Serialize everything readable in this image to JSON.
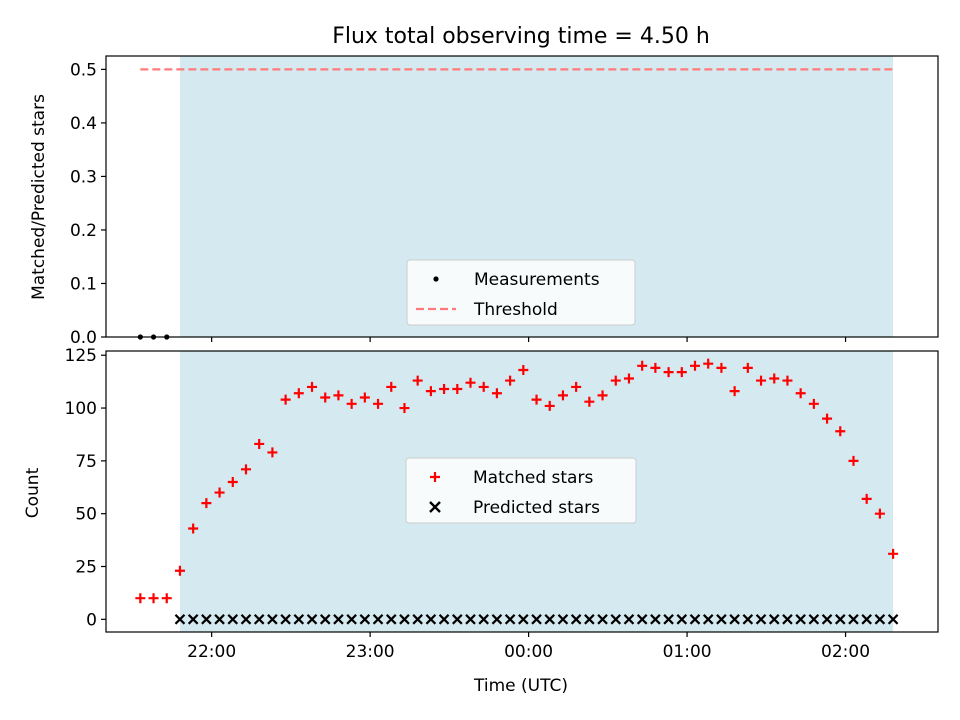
{
  "chart_data": [
    {
      "type": "scatter",
      "title": "Flux total observing time = 4.50 h",
      "xlabel": "",
      "ylabel": "Matched/Predicted stars",
      "xlim": [
        "21:20",
        "02:35"
      ],
      "ylim": [
        0.0,
        0.525
      ],
      "yticks": [
        0.0,
        0.1,
        0.2,
        0.3,
        0.4,
        0.5
      ],
      "ytick_labels": [
        "0.0",
        "0.1",
        "0.2",
        "0.3",
        "0.4",
        "0.5"
      ],
      "shaded_interval": {
        "start": "21:48",
        "end": "02:18",
        "color": "#d4eaf0"
      },
      "threshold": {
        "name": "Threshold",
        "value": 0.5,
        "x_start": "21:33",
        "x_end": "02:18",
        "color": "#ff7a7a"
      },
      "series": [
        {
          "name": "Measurements",
          "marker": "dot",
          "color": "#000000",
          "x": [
            "21:33",
            "21:38",
            "21:43"
          ],
          "y": [
            0.0,
            0.0,
            0.0
          ]
        }
      ],
      "legend": {
        "placement": "lower-center",
        "entries": [
          "Measurements",
          "Threshold"
        ]
      }
    },
    {
      "type": "scatter",
      "xlabel": "Time (UTC)",
      "ylabel": "Count",
      "xlim": [
        "21:20",
        "02:35"
      ],
      "ylim": [
        -6,
        127
      ],
      "xticks": [
        "22:00",
        "23:00",
        "00:00",
        "01:00",
        "02:00"
      ],
      "yticks": [
        0,
        25,
        50,
        75,
        100,
        125
      ],
      "ytick_labels": [
        "0",
        "25",
        "50",
        "75",
        "100",
        "125"
      ],
      "shaded_interval": {
        "start": "21:48",
        "end": "02:18",
        "color": "#d4eaf0"
      },
      "series": [
        {
          "name": "Matched stars",
          "marker": "plus",
          "color": "#ff0000",
          "x": [
            "21:33",
            "21:38",
            "21:43",
            "21:48",
            "21:53",
            "21:58",
            "22:03",
            "22:08",
            "22:13",
            "22:18",
            "22:23",
            "22:28",
            "22:33",
            "22:38",
            "22:43",
            "22:48",
            "22:53",
            "22:58",
            "23:03",
            "23:08",
            "23:13",
            "23:18",
            "23:23",
            "23:28",
            "23:33",
            "23:38",
            "23:43",
            "23:48",
            "23:53",
            "23:58",
            "00:03",
            "00:08",
            "00:13",
            "00:18",
            "00:23",
            "00:28",
            "00:33",
            "00:38",
            "00:43",
            "00:48",
            "00:53",
            "00:58",
            "01:03",
            "01:08",
            "01:13",
            "01:18",
            "01:23",
            "01:28",
            "01:33",
            "01:38",
            "01:43",
            "01:48",
            "01:53",
            "01:58",
            "02:03",
            "02:08",
            "02:13",
            "02:18"
          ],
          "y": [
            10,
            10,
            10,
            23,
            43,
            55,
            60,
            65,
            71,
            83,
            79,
            104,
            107,
            110,
            105,
            106,
            102,
            105,
            102,
            110,
            100,
            113,
            108,
            109,
            109,
            112,
            110,
            107,
            113,
            118,
            104,
            101,
            106,
            110,
            103,
            106,
            113,
            114,
            120,
            119,
            117,
            117,
            120,
            121,
            119,
            108,
            119,
            113,
            114,
            113,
            107,
            102,
            95,
            89,
            75,
            57,
            50,
            31
          ]
        },
        {
          "name": "Predicted stars",
          "marker": "x",
          "color": "#000000",
          "x": [
            "21:48",
            "21:53",
            "21:58",
            "22:03",
            "22:08",
            "22:13",
            "22:18",
            "22:23",
            "22:28",
            "22:33",
            "22:38",
            "22:43",
            "22:48",
            "22:53",
            "22:58",
            "23:03",
            "23:08",
            "23:13",
            "23:18",
            "23:23",
            "23:28",
            "23:33",
            "23:38",
            "23:43",
            "23:48",
            "23:53",
            "23:58",
            "00:03",
            "00:08",
            "00:13",
            "00:18",
            "00:23",
            "00:28",
            "00:33",
            "00:38",
            "00:43",
            "00:48",
            "00:53",
            "00:58",
            "01:03",
            "01:08",
            "01:13",
            "01:18",
            "01:23",
            "01:28",
            "01:33",
            "01:38",
            "01:43",
            "01:48",
            "01:53",
            "01:58",
            "02:03",
            "02:08",
            "02:13",
            "02:18"
          ],
          "y": [
            0,
            0,
            0,
            0,
            0,
            0,
            0,
            0,
            0,
            0,
            0,
            0,
            0,
            0,
            0,
            0,
            0,
            0,
            0,
            0,
            0,
            0,
            0,
            0,
            0,
            0,
            0,
            0,
            0,
            0,
            0,
            0,
            0,
            0,
            0,
            0,
            0,
            0,
            0,
            0,
            0,
            0,
            0,
            0,
            0,
            0,
            0,
            0,
            0,
            0,
            0,
            0,
            0,
            0,
            0
          ]
        }
      ],
      "legend": {
        "placement": "center",
        "entries": [
          "Matched stars",
          "Predicted stars"
        ]
      }
    }
  ]
}
